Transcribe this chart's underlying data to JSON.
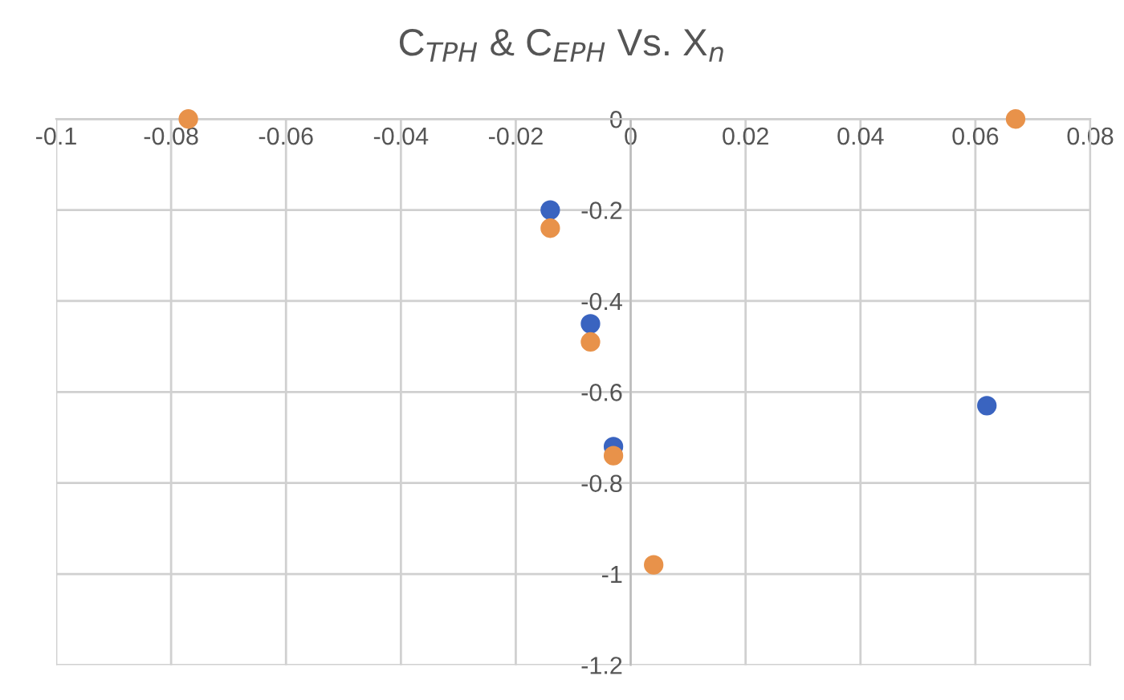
{
  "chart_data": {
    "type": "scatter",
    "title": "C$_{TPH}$ & C$_{EPH}$ Vs. X$_{n}$",
    "series": [
      {
        "color": "#3a64c0",
        "x": [
          -0.014,
          -0.007,
          -0.003,
          0.062
        ],
        "values": [
          -0.2,
          -0.45,
          -0.72,
          -0.63
        ]
      },
      {
        "color": "#e8924a",
        "x": [
          -0.014,
          -0.007,
          -0.003,
          0.004,
          -0.077,
          0.067
        ],
        "values": [
          -0.24,
          -0.49,
          -0.74,
          -0.98,
          0,
          0
        ]
      }
    ],
    "xlim": [
      -0.1,
      0.08
    ],
    "xticks": [
      -0.1,
      -0.08,
      -0.06,
      -0.04,
      -0.02,
      0,
      0.02,
      0.04,
      0.06,
      0.08
    ],
    "ylim": [
      -1.2,
      0
    ],
    "yticks": [
      -1.2,
      -1,
      -0.8,
      -0.6,
      -0.4,
      -0.2,
      0
    ],
    "grid": true,
    "marker": "circle"
  }
}
